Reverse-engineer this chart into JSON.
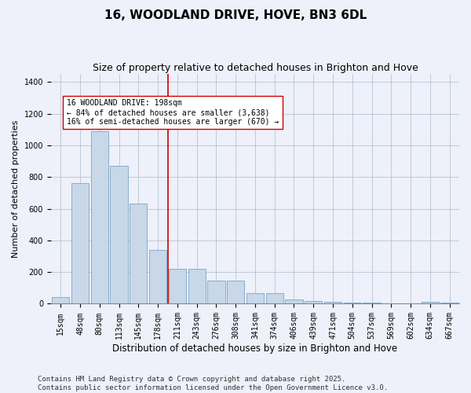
{
  "title": "16, WOODLAND DRIVE, HOVE, BN3 6DL",
  "subtitle": "Size of property relative to detached houses in Brighton and Hove",
  "xlabel": "Distribution of detached houses by size in Brighton and Hove",
  "ylabel": "Number of detached properties",
  "categories": [
    "15sqm",
    "48sqm",
    "80sqm",
    "113sqm",
    "145sqm",
    "178sqm",
    "211sqm",
    "243sqm",
    "276sqm",
    "308sqm",
    "341sqm",
    "374sqm",
    "406sqm",
    "439sqm",
    "471sqm",
    "504sqm",
    "537sqm",
    "569sqm",
    "602sqm",
    "634sqm",
    "667sqm"
  ],
  "values": [
    40,
    760,
    1090,
    870,
    630,
    340,
    220,
    220,
    145,
    145,
    65,
    65,
    25,
    18,
    13,
    8,
    5,
    2,
    2,
    10,
    5
  ],
  "bar_color": "#c8d8e8",
  "bar_edge_color": "#6699bb",
  "vline_x_index": 6,
  "vline_color": "#cc0000",
  "annotation_line1": "16 WOODLAND DRIVE: 198sqm",
  "annotation_line2": "← 84% of detached houses are smaller (3,638)",
  "annotation_line3": "16% of semi-detached houses are larger (670) →",
  "annotation_box_color": "#ffffff",
  "annotation_box_edge_color": "#cc0000",
  "footer": "Contains HM Land Registry data © Crown copyright and database right 2025.\nContains public sector information licensed under the Open Government Licence v3.0.",
  "background_color": "#eef0fa",
  "plot_bg_color": "#eef0fa",
  "ylim": [
    0,
    1450
  ],
  "title_fontsize": 11,
  "subtitle_fontsize": 9,
  "xlabel_fontsize": 8.5,
  "ylabel_fontsize": 8,
  "tick_fontsize": 7,
  "footer_fontsize": 6.5
}
